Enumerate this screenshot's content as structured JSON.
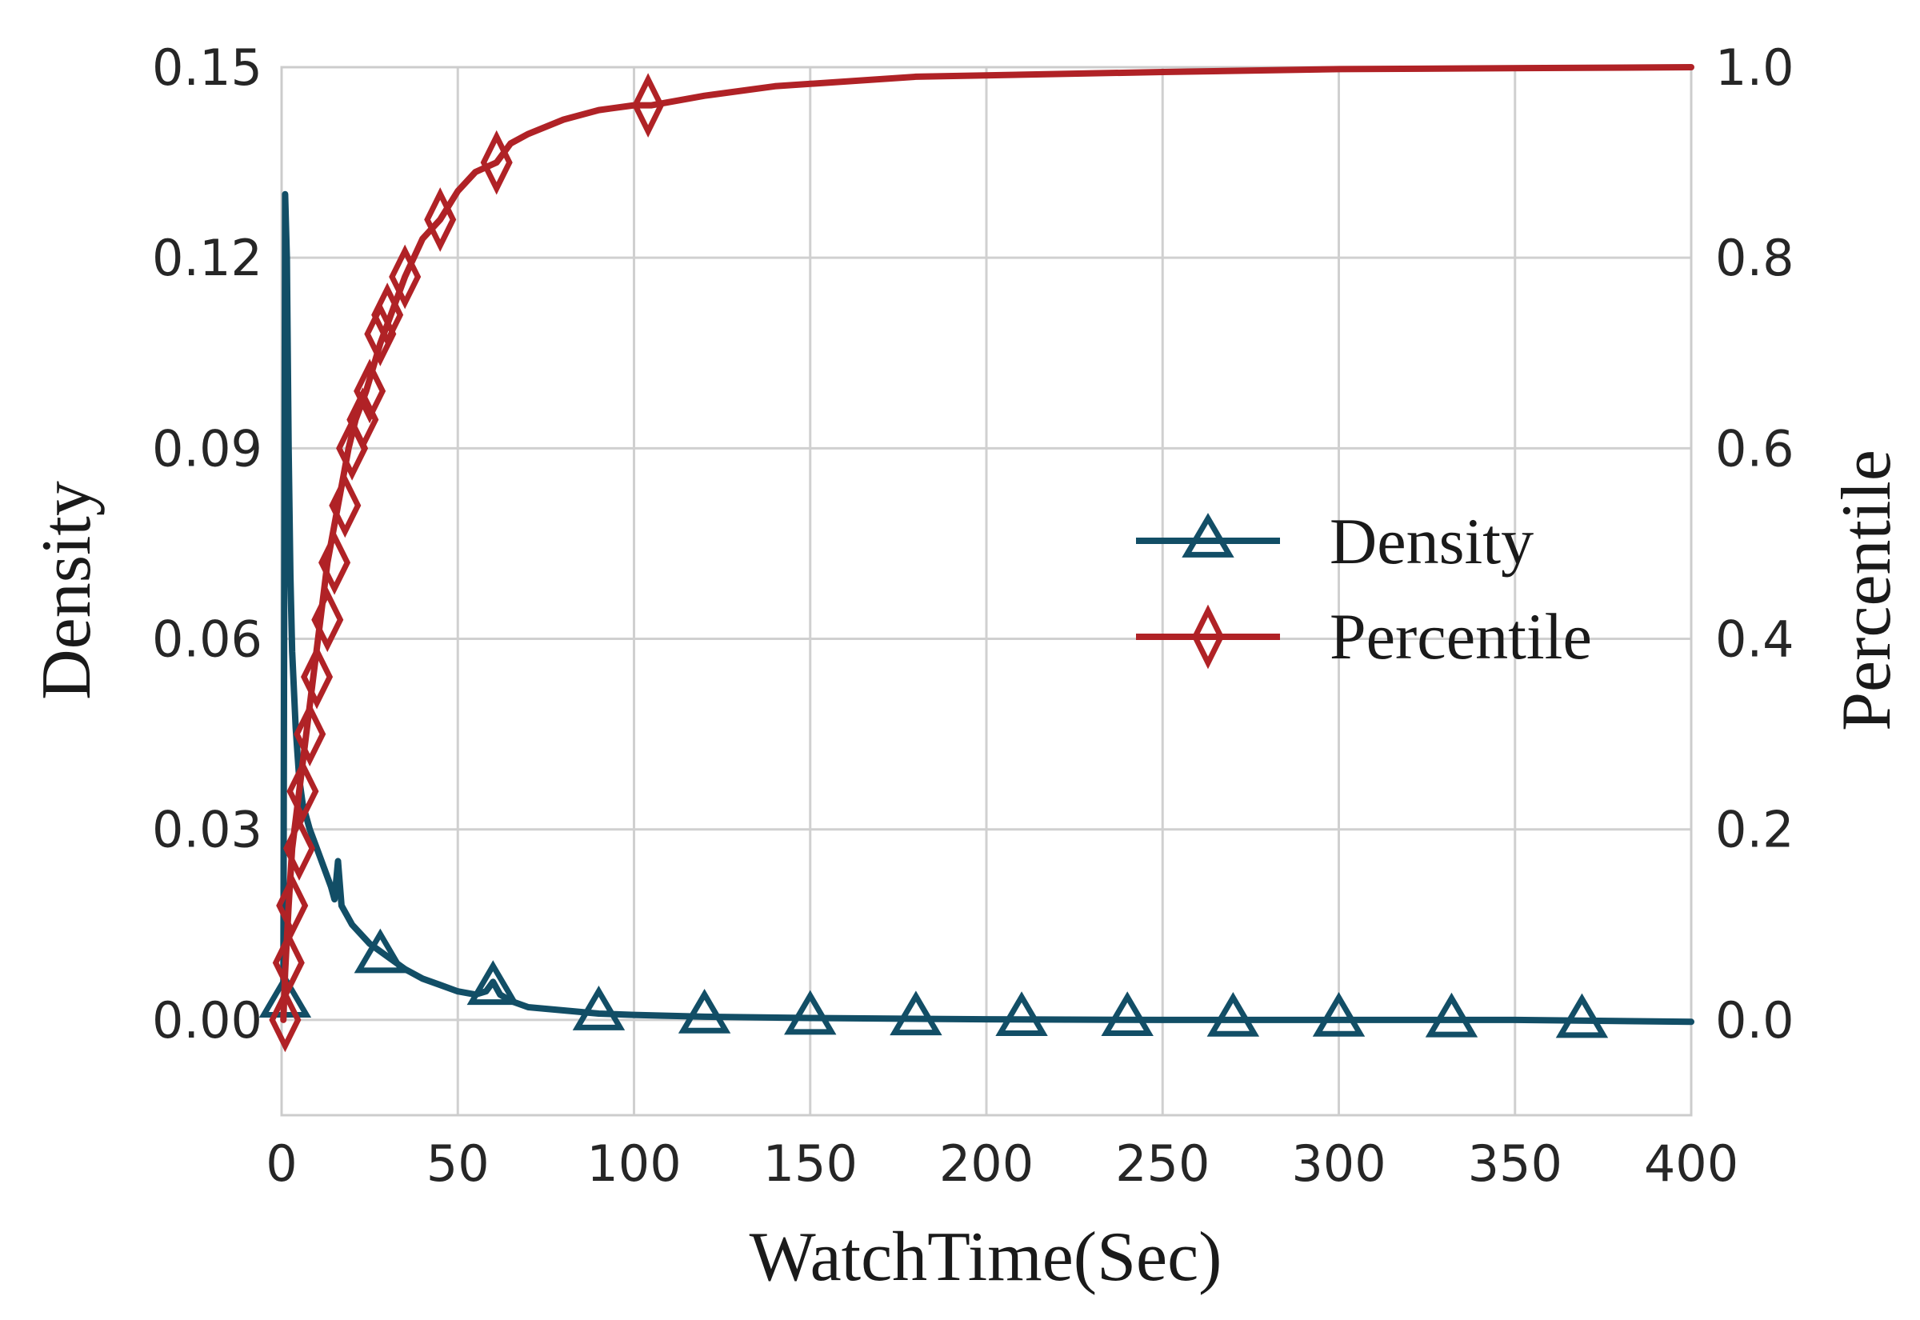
{
  "chart_data": {
    "type": "line",
    "title": "",
    "xlabel": "WatchTime(Sec)",
    "ylabel_left": "Density",
    "ylabel_right": "Percentile",
    "xlim": [
      0,
      400
    ],
    "ylim_left": [
      -0.015,
      0.15
    ],
    "ylim_right": [
      -0.1,
      1.0
    ],
    "x_ticks": [
      0,
      50,
      100,
      150,
      200,
      250,
      300,
      350,
      400
    ],
    "x_tick_labels": [
      "0",
      "50",
      "100",
      "150",
      "200",
      "250",
      "300",
      "350",
      "400"
    ],
    "y_left_ticks": [
      0.0,
      0.03,
      0.06,
      0.09,
      0.12,
      0.15
    ],
    "y_left_tick_labels": [
      "0.00",
      "0.03",
      "0.06",
      "0.09",
      "0.12",
      "0.15"
    ],
    "y_right_ticks": [
      0.0,
      0.2,
      0.4,
      0.6,
      0.8,
      1.0
    ],
    "y_right_tick_labels": [
      "0.0",
      "0.2",
      "0.4",
      "0.6",
      "0.8",
      "1.0"
    ],
    "grid": true,
    "legend_position": "center-right",
    "series": [
      {
        "name": "Density",
        "axis": "left",
        "color": "#124e66",
        "marker": "triangle",
        "line_x": [
          0.5,
          1,
          1.5,
          2,
          2.5,
          3,
          4,
          5,
          6,
          8,
          10,
          12,
          14,
          15,
          16,
          17,
          18,
          20,
          25,
          30,
          35,
          40,
          45,
          50,
          55,
          58,
          60,
          62,
          65,
          70,
          80,
          90,
          100,
          120,
          150,
          200,
          250,
          300,
          350,
          400
        ],
        "line_y": [
          0.005,
          0.13,
          0.12,
          0.09,
          0.07,
          0.058,
          0.046,
          0.038,
          0.034,
          0.03,
          0.027,
          0.024,
          0.021,
          0.019,
          0.025,
          0.018,
          0.017,
          0.015,
          0.012,
          0.01,
          0.008,
          0.0065,
          0.0055,
          0.0045,
          0.004,
          0.0045,
          0.006,
          0.004,
          0.003,
          0.002,
          0.0015,
          0.001,
          0.0008,
          0.0005,
          0.0003,
          0.0001,
          0.0,
          0.0,
          0.0,
          -0.0003
        ],
        "marker_x": [
          1,
          28,
          60,
          90,
          120,
          150,
          180,
          210,
          240,
          270,
          300,
          332,
          369
        ],
        "marker_y": [
          0.003,
          0.01,
          0.005,
          0.001,
          0.0005,
          0.0003,
          0.0002,
          0.0001,
          0.0001,
          0.0,
          0.0,
          -0.0001,
          -0.0002
        ]
      },
      {
        "name": "Percentile",
        "axis": "right",
        "color": "#b02226",
        "marker": "diamond",
        "line_x": [
          0.5,
          1,
          2,
          3,
          5,
          7,
          9,
          11,
          13,
          16,
          19,
          21,
          24,
          28,
          31,
          35,
          40,
          45,
          50,
          55,
          61,
          65,
          70,
          80,
          90,
          100,
          105,
          120,
          140,
          180,
          250,
          300,
          400
        ],
        "line_y": [
          0.0,
          0.05,
          0.12,
          0.18,
          0.24,
          0.3,
          0.36,
          0.42,
          0.48,
          0.54,
          0.6,
          0.63,
          0.66,
          0.71,
          0.74,
          0.78,
          0.82,
          0.84,
          0.87,
          0.89,
          0.9,
          0.92,
          0.93,
          0.945,
          0.955,
          0.96,
          0.96,
          0.97,
          0.98,
          0.99,
          0.995,
          0.998,
          1.0
        ],
        "marker_x": [
          1,
          2,
          3,
          5,
          6,
          8,
          10,
          13,
          15,
          18,
          20,
          23,
          25,
          28,
          30,
          35,
          45,
          61,
          104
        ],
        "marker_y": [
          0.0,
          0.06,
          0.12,
          0.18,
          0.24,
          0.3,
          0.36,
          0.42,
          0.48,
          0.54,
          0.6,
          0.63,
          0.66,
          0.72,
          0.74,
          0.78,
          0.84,
          0.9,
          0.96
        ]
      }
    ]
  }
}
